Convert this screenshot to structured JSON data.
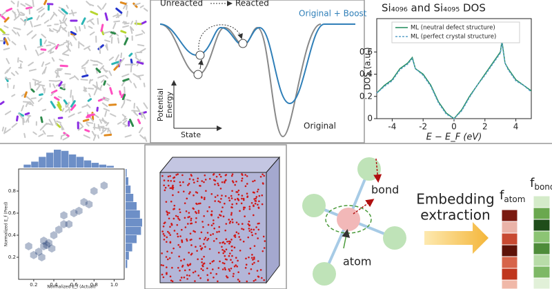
{
  "panels": {
    "energy": {
      "unreacted": "Unreacted",
      "reacted": "Reacted",
      "boost": "Original + Boost",
      "y_label_1": "Potential",
      "y_label_2": "Energy",
      "x_label": "State",
      "original": "Original"
    },
    "embedding": {
      "bond": "bond",
      "atom": "atom",
      "arrow_label_1": "Embedding",
      "arrow_label_2": "extraction",
      "f_atom": {
        "main": "f",
        "sub": "atom"
      },
      "f_bond": {
        "main": "f",
        "sub": "bond"
      }
    }
  },
  "chart_data": [
    {
      "type": "line",
      "title": "Si₄₀₉₆ and Si₄₀₉₅ DOS",
      "x_label": "E − E_F (eV)",
      "y_label": "DOS (a.u.)",
      "x": [
        -5,
        -4.5,
        -4,
        -3.5,
        -3,
        -2.7,
        -2.5,
        -2,
        -1.5,
        -1,
        -0.5,
        0,
        0.5,
        1,
        1.5,
        2,
        2.5,
        3,
        3.1,
        3.3,
        3.5,
        4,
        4.5,
        5
      ],
      "series": [
        {
          "name": "ML (neutral defect structure)",
          "color": "#1f8a5a",
          "values": [
            0.23,
            0.3,
            0.35,
            0.45,
            0.5,
            0.55,
            0.45,
            0.4,
            0.3,
            0.15,
            0.05,
            0.0,
            0.08,
            0.2,
            0.3,
            0.4,
            0.5,
            0.6,
            0.7,
            0.5,
            0.45,
            0.35,
            0.3,
            0.25
          ]
        },
        {
          "name": "ML (perfect crystal structure)",
          "color": "#5aa0c8",
          "dashed": true,
          "values": [
            0.23,
            0.29,
            0.34,
            0.44,
            0.49,
            0.54,
            0.45,
            0.39,
            0.29,
            0.14,
            0.04,
            0.0,
            0.07,
            0.19,
            0.3,
            0.39,
            0.49,
            0.59,
            0.68,
            0.5,
            0.44,
            0.34,
            0.3,
            0.24
          ]
        }
      ],
      "xlim": [
        -5,
        5
      ],
      "xticks": [
        -4,
        -2,
        0,
        2,
        4
      ],
      "ylim": [
        0,
        0.9
      ],
      "yticks": [
        0.0,
        0.2,
        0.4,
        0.6
      ],
      "legend": "upper-left"
    },
    {
      "type": "scatter",
      "x_label": "Normalized E_f (Actual)",
      "y_label": "Normalized E_f (Pred)",
      "color": "#1f3b73",
      "x": [
        0.25,
        0.3,
        0.35,
        0.4,
        0.2,
        0.45,
        0.5,
        0.55,
        0.6,
        0.3,
        0.28,
        0.65,
        0.7,
        0.75,
        0.8,
        0.15,
        0.38,
        0.5,
        0.9,
        0.33
      ],
      "y": [
        0.25,
        0.3,
        0.33,
        0.4,
        0.22,
        0.45,
        0.5,
        0.5,
        0.6,
        0.35,
        0.2,
        0.62,
        0.7,
        0.68,
        0.8,
        0.3,
        0.28,
        0.58,
        0.85,
        0.31
      ],
      "x_hist": {
        "bins": [
          0.1,
          0.175,
          0.25,
          0.325,
          0.4,
          0.475,
          0.55,
          0.625,
          0.7,
          0.775,
          0.85,
          0.925,
          1.0
        ],
        "counts": [
          5,
          10,
          18,
          25,
          30,
          28,
          22,
          18,
          12,
          8,
          5,
          3
        ]
      },
      "y_hist": {
        "bins": [
          0.1,
          0.175,
          0.25,
          0.325,
          0.4,
          0.475,
          0.55,
          0.625,
          0.7,
          0.775,
          0.85,
          0.925,
          1.0
        ],
        "counts": [
          3,
          6,
          12,
          20,
          28,
          30,
          26,
          20,
          14,
          9,
          5,
          2
        ]
      },
      "xlim": [
        0.05,
        1.1
      ],
      "xticks": [
        0.2,
        0.4,
        0.6,
        0.8,
        {
          "value": 1.0,
          "label": "1.0"
        }
      ],
      "ylim": [
        0,
        1.0
      ],
      "yticks": [
        0.2,
        0.4,
        0.6,
        0.8
      ]
    }
  ]
}
